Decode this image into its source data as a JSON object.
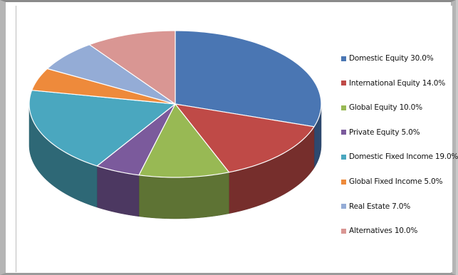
{
  "chart_data": {
    "type": "pie",
    "variant": "3d",
    "title": "",
    "legend_position": "right",
    "slices": [
      {
        "label": "Domestic Equity",
        "value": 30.0,
        "legend_text": "Domestic Equity 30.0%",
        "color": "#4a76b3"
      },
      {
        "label": "International Equity",
        "value": 14.0,
        "legend_text": "International Equity 14.0%",
        "color": "#bf4a47"
      },
      {
        "label": "Global Equity",
        "value": 10.0,
        "legend_text": "Global Equity 10.0%",
        "color": "#98b954"
      },
      {
        "label": "Private Equity",
        "value": 5.0,
        "legend_text": "Private Equity 5.0%",
        "color": "#7b5a9c"
      },
      {
        "label": "Domestic Fixed Income",
        "value": 19.0,
        "legend_text": "Domestic Fixed Income 19.0%",
        "color": "#4aa7bf"
      },
      {
        "label": "Global Fixed Income",
        "value": 5.0,
        "legend_text": "Global Fixed Income 5.0%",
        "color": "#ee8a3b"
      },
      {
        "label": "Real Estate",
        "value": 7.0,
        "legend_text": "Real Estate 7.0%",
        "color": "#94acd6"
      },
      {
        "label": "Alternatives",
        "value": 10.0,
        "legend_text": "Alternatives 10.0%",
        "color": "#d99693"
      }
    ]
  }
}
